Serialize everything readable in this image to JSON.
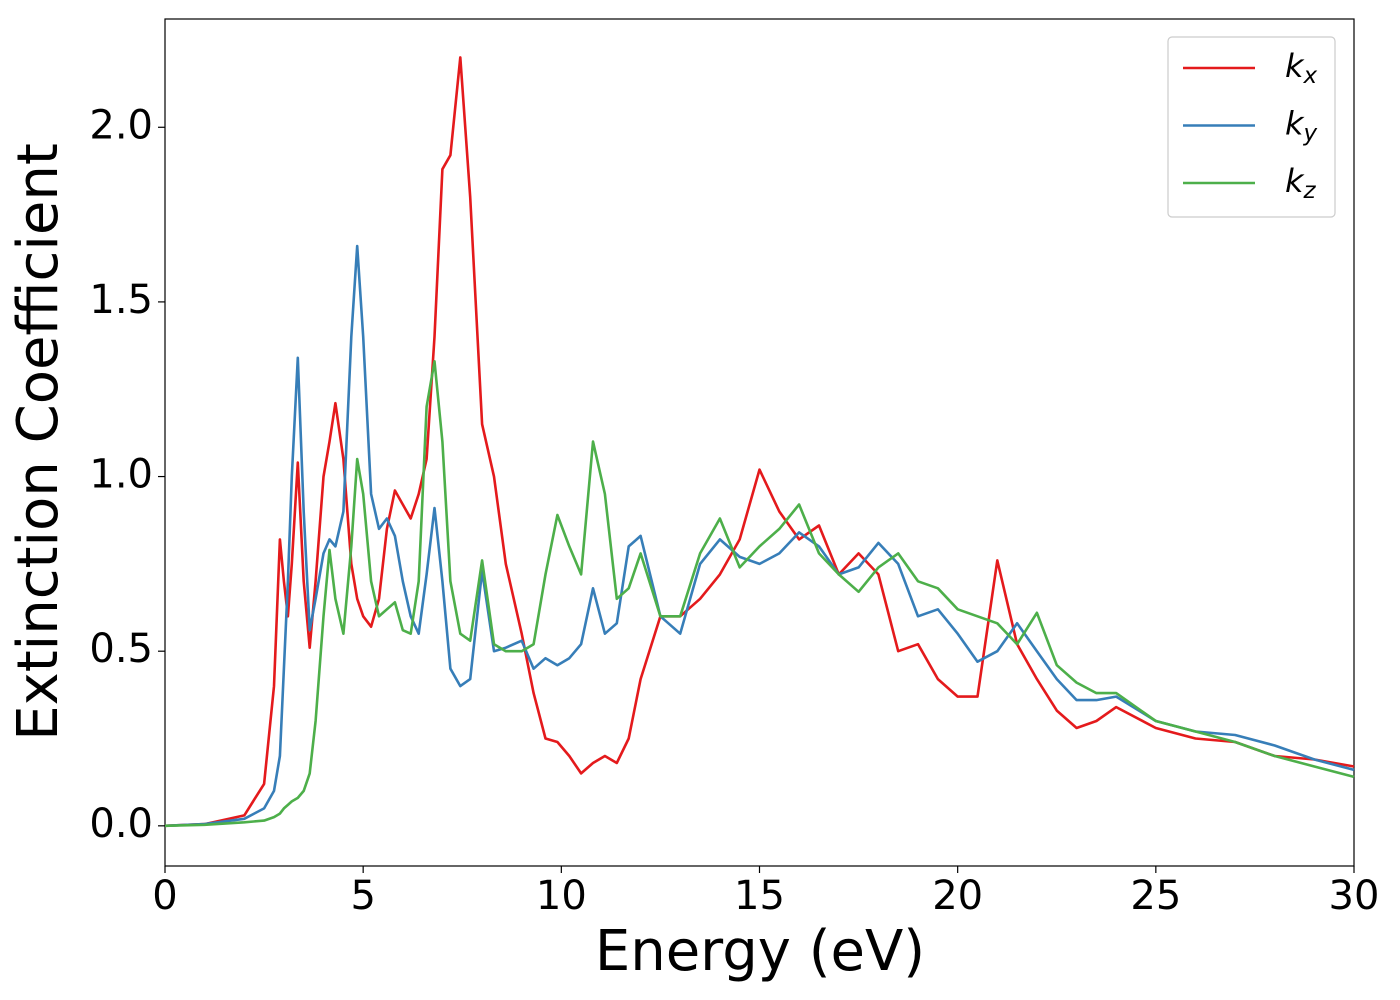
{
  "chart_data": {
    "type": "line",
    "xlabel": "Energy (eV)",
    "ylabel": "Extinction Coefficient",
    "x": [
      0,
      1,
      2,
      2.5,
      2.75,
      2.9,
      3.0,
      3.1,
      3.2,
      3.35,
      3.5,
      3.65,
      3.8,
      4.0,
      4.15,
      4.3,
      4.5,
      4.7,
      4.85,
      5.0,
      5.2,
      5.4,
      5.6,
      5.8,
      6.0,
      6.2,
      6.4,
      6.6,
      6.8,
      7.0,
      7.2,
      7.45,
      7.7,
      8.0,
      8.3,
      8.6,
      9.0,
      9.3,
      9.6,
      9.9,
      10.2,
      10.5,
      10.8,
      11.1,
      11.4,
      11.7,
      12.0,
      12.5,
      13.0,
      13.5,
      14.0,
      14.5,
      15.0,
      15.5,
      16.0,
      16.5,
      17.0,
      17.5,
      18.0,
      18.5,
      19.0,
      19.5,
      20.0,
      20.5,
      21.0,
      21.5,
      22.0,
      22.5,
      23.0,
      23.5,
      24.0,
      25,
      26,
      27,
      28,
      29,
      30
    ],
    "series": [
      {
        "name": "kx",
        "color": "#e41a1c",
        "values": [
          0,
          0.005,
          0.03,
          0.12,
          0.4,
          0.82,
          0.7,
          0.6,
          0.75,
          1.04,
          0.7,
          0.51,
          0.7,
          1.0,
          1.1,
          1.21,
          1.05,
          0.75,
          0.65,
          0.6,
          0.57,
          0.65,
          0.85,
          0.96,
          0.92,
          0.88,
          0.95,
          1.05,
          1.4,
          1.88,
          1.92,
          2.2,
          1.8,
          1.15,
          1.0,
          0.75,
          0.55,
          0.38,
          0.25,
          0.24,
          0.2,
          0.15,
          0.18,
          0.2,
          0.18,
          0.25,
          0.42,
          0.6,
          0.6,
          0.65,
          0.72,
          0.82,
          1.02,
          0.9,
          0.82,
          0.86,
          0.72,
          0.78,
          0.72,
          0.5,
          0.52,
          0.42,
          0.37,
          0.37,
          0.76,
          0.52,
          0.42,
          0.33,
          0.28,
          0.3,
          0.34,
          0.28,
          0.25,
          0.24,
          0.2,
          0.19,
          0.17
        ]
      },
      {
        "name": "ky",
        "color": "#377eb8",
        "values": [
          0,
          0.005,
          0.02,
          0.05,
          0.1,
          0.2,
          0.45,
          0.7,
          1.0,
          1.34,
          0.9,
          0.56,
          0.65,
          0.78,
          0.82,
          0.8,
          0.9,
          1.4,
          1.66,
          1.4,
          0.95,
          0.85,
          0.88,
          0.83,
          0.7,
          0.6,
          0.55,
          0.72,
          0.91,
          0.7,
          0.45,
          0.4,
          0.42,
          0.73,
          0.5,
          0.51,
          0.53,
          0.45,
          0.48,
          0.46,
          0.48,
          0.52,
          0.68,
          0.55,
          0.58,
          0.8,
          0.83,
          0.6,
          0.55,
          0.75,
          0.82,
          0.77,
          0.75,
          0.78,
          0.84,
          0.8,
          0.72,
          0.74,
          0.81,
          0.75,
          0.6,
          0.62,
          0.55,
          0.47,
          0.5,
          0.58,
          0.5,
          0.42,
          0.36,
          0.36,
          0.37,
          0.3,
          0.27,
          0.26,
          0.23,
          0.19,
          0.16
        ]
      },
      {
        "name": "kz",
        "color": "#4daf4a",
        "values": [
          0,
          0.003,
          0.01,
          0.015,
          0.025,
          0.035,
          0.05,
          0.06,
          0.07,
          0.08,
          0.1,
          0.15,
          0.3,
          0.6,
          0.79,
          0.65,
          0.55,
          0.8,
          1.05,
          0.95,
          0.7,
          0.6,
          0.62,
          0.64,
          0.56,
          0.55,
          0.7,
          1.2,
          1.33,
          1.1,
          0.7,
          0.55,
          0.53,
          0.76,
          0.52,
          0.5,
          0.5,
          0.52,
          0.72,
          0.89,
          0.8,
          0.72,
          1.1,
          0.95,
          0.65,
          0.68,
          0.78,
          0.6,
          0.6,
          0.78,
          0.88,
          0.74,
          0.8,
          0.85,
          0.92,
          0.78,
          0.72,
          0.67,
          0.74,
          0.78,
          0.7,
          0.68,
          0.62,
          0.6,
          0.58,
          0.52,
          0.61,
          0.46,
          0.41,
          0.38,
          0.38,
          0.3,
          0.27,
          0.24,
          0.2,
          0.17,
          0.14
        ]
      }
    ],
    "xlim": [
      0,
      30
    ],
    "xticks": [
      0,
      5,
      10,
      15,
      20,
      25,
      30
    ],
    "ylim": [
      -0.115,
      2.31
    ],
    "yticks": [
      {
        "value": 0,
        "label": "0.0"
      },
      0.5,
      {
        "value": 1,
        "label": "1.0"
      },
      1.5,
      {
        "value": 2,
        "label": "2.0"
      }
    ],
    "grid": false,
    "legend": "upper right"
  }
}
